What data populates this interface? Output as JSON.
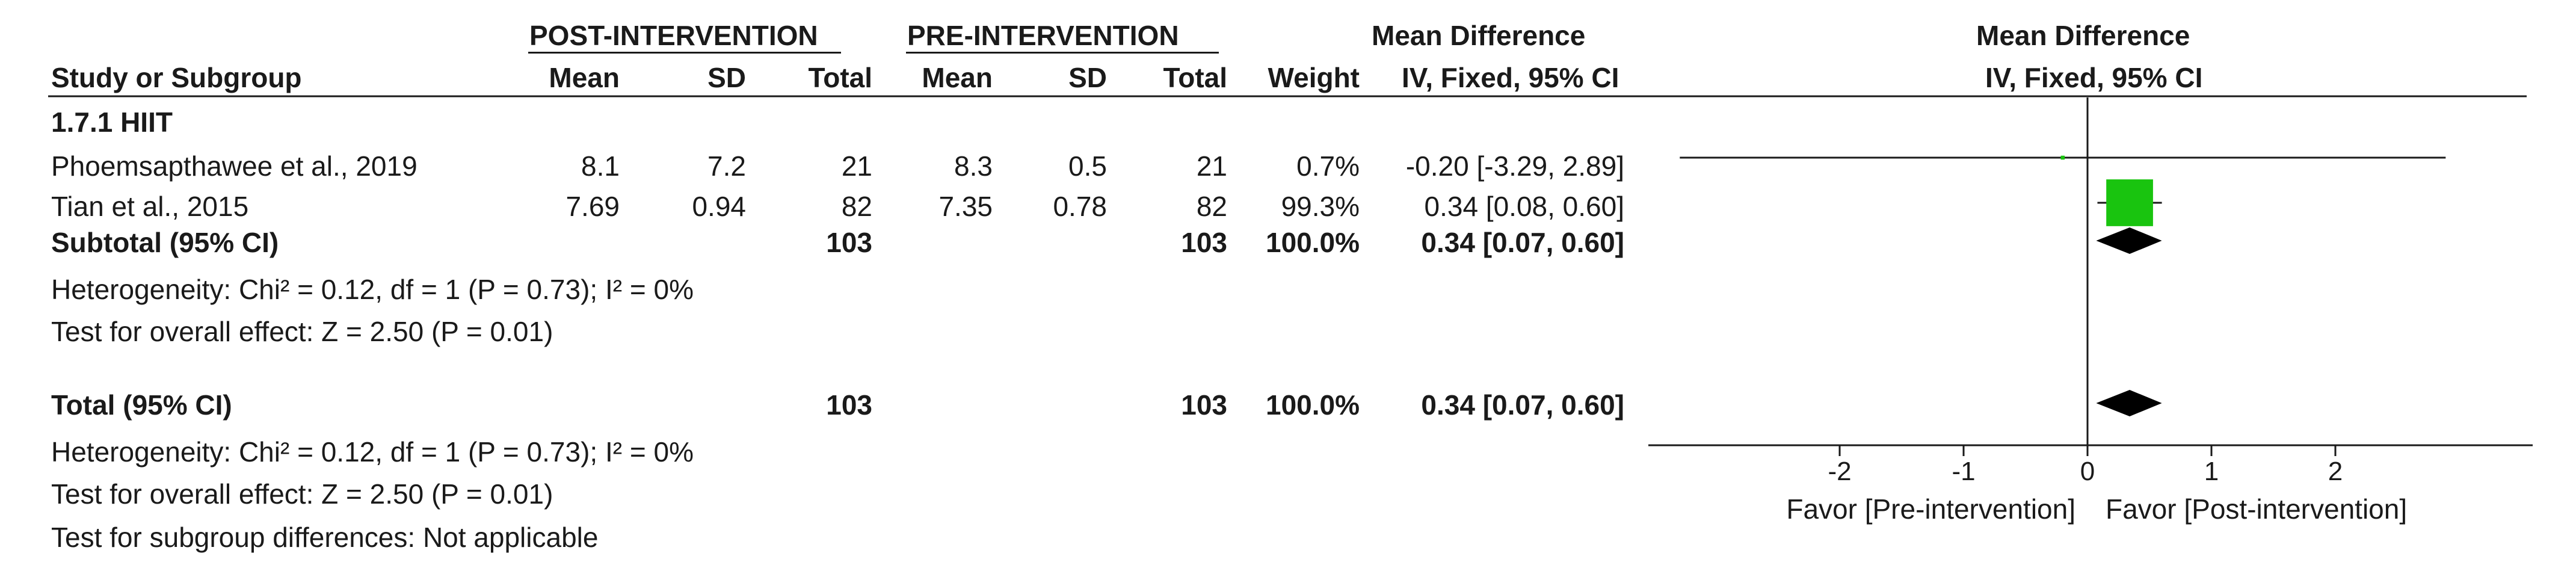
{
  "headers": {
    "group_post": "POST-INTERVENTION",
    "group_pre": "PRE-INTERVENTION",
    "md_title": "Mean Difference",
    "study_col": "Study or Subgroup",
    "mean": "Mean",
    "sd": "SD",
    "total": "Total",
    "weight": "Weight",
    "md_method": "IV, Fixed, 95% CI",
    "plot_title": "Mean Difference",
    "plot_method": "IV, Fixed, 95% CI"
  },
  "subgroup": {
    "label": "1.7.1 HIIT",
    "studies": [
      {
        "name": "Phoemsapthawee et al., 2019",
        "post_mean": "8.1",
        "post_sd": "7.2",
        "post_total": "21",
        "pre_mean": "8.3",
        "pre_sd": "0.5",
        "pre_total": "21",
        "weight": "0.7%",
        "ci_text": "-0.20 [-3.29, 2.89]"
      },
      {
        "name": "Tian et al., 2015",
        "post_mean": "7.69",
        "post_sd": "0.94",
        "post_total": "82",
        "pre_mean": "7.35",
        "pre_sd": "0.78",
        "pre_total": "82",
        "weight": "99.3%",
        "ci_text": "0.34 [0.08, 0.60]"
      }
    ],
    "subtotal": {
      "label": "Subtotal (95% CI)",
      "post_total": "103",
      "pre_total": "103",
      "weight": "100.0%",
      "ci_text": "0.34 [0.07, 0.60]"
    },
    "heterogeneity": "Heterogeneity: Chi² = 0.12, df = 1 (P = 0.73); I² = 0%",
    "overall_effect": "Test for overall effect: Z = 2.50 (P = 0.01)"
  },
  "total": {
    "label": "Total (95% CI)",
    "post_total": "103",
    "pre_total": "103",
    "weight": "100.0%",
    "ci_text": "0.34 [0.07, 0.60]",
    "heterogeneity": "Heterogeneity: Chi² = 0.12, df = 1 (P = 0.73); I² = 0%",
    "overall_effect": "Test for overall effect: Z = 2.50 (P = 0.01)",
    "subgroup_diff": "Test for subgroup differences: Not applicable"
  },
  "axis_labels": {
    "left": "Favor [Pre-intervention]",
    "right": "Favor [Post-intervention]"
  },
  "chart_data": {
    "type": "forest",
    "xlim": [
      -3.5,
      3.5
    ],
    "ticks": [
      -2,
      -1,
      0,
      1,
      2
    ],
    "null_line": 0,
    "studies": [
      {
        "name": "Phoemsapthawee et al., 2019",
        "estimate": -0.2,
        "ci": [
          -3.29,
          2.89
        ],
        "weight": 0.7
      },
      {
        "name": "Tian et al., 2015",
        "estimate": 0.34,
        "ci": [
          0.08,
          0.6
        ],
        "weight": 99.3
      }
    ],
    "subtotal": {
      "estimate": 0.34,
      "ci": [
        0.07,
        0.6
      ]
    },
    "total": {
      "estimate": 0.34,
      "ci": [
        0.07,
        0.6
      ]
    },
    "colors": {
      "square": "#19c40f",
      "diamond": "#000000",
      "line": "#1a1a1a"
    }
  }
}
